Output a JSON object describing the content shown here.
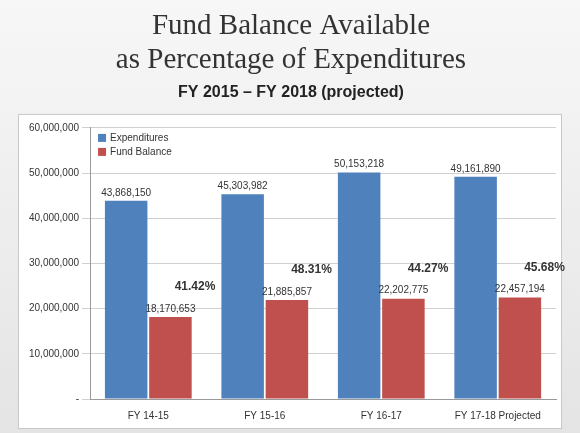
{
  "chart_data": {
    "type": "bar",
    "title": [
      "Fund Balance Available",
      "as Percentage of Expenditures"
    ],
    "subtitle": "FY 2015 – FY 2018 (projected)",
    "categories": [
      "FY 14-15",
      "FY 15-16",
      "FY 16-17",
      "FY 17-18 Projected"
    ],
    "series": [
      {
        "name": "Expenditures",
        "color": "#4f81bd",
        "values": [
          43868150,
          45303982,
          50153218,
          49161890
        ],
        "value_labels": [
          "43,868,150",
          "45,303,982",
          "50,153,218",
          "49,161,890"
        ]
      },
      {
        "name": "Fund Balance",
        "color": "#c0504d",
        "values": [
          18170653,
          21885857,
          22202775,
          22457194
        ],
        "value_labels": [
          "18,170,653",
          "21,885,857",
          "22,202,775",
          "22,457,194"
        ]
      }
    ],
    "annotations": [
      "41.42%",
      "48.31%",
      "44.27%",
      "45.68%"
    ],
    "ylim": [
      0,
      60000000
    ],
    "yticks": [
      {
        "value": 0,
        "label": "-"
      },
      {
        "value": 10000000,
        "label": "10,000,000"
      },
      {
        "value": 20000000,
        "label": "20,000,000"
      },
      {
        "value": 30000000,
        "label": "30,000,000"
      },
      {
        "value": 40000000,
        "label": "40,000,000"
      },
      {
        "value": 50000000,
        "label": "50,000,000"
      },
      {
        "value": 60000000,
        "label": "60,000,000"
      }
    ],
    "grid": true,
    "legend": "upper left",
    "data_labels": true
  }
}
